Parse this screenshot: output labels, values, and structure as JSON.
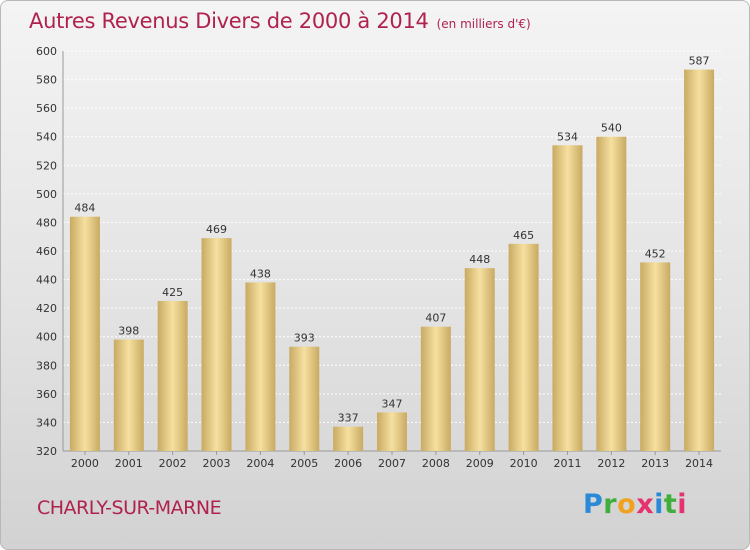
{
  "header": {
    "title": "Autres Revenus Divers de 2000 à 2014",
    "subtitle": "(en milliers d'€)"
  },
  "footer": {
    "city": "CHARLY-SUR-MARNE",
    "brand_letters": [
      "P",
      "r",
      "o",
      "x",
      "i",
      "t",
      "i"
    ]
  },
  "colors": {
    "title": "#b0224e",
    "bar_light": "#f6e0a0",
    "bar_dark": "#c8aa62"
  },
  "chart_data": {
    "type": "bar",
    "title": "Autres Revenus Divers de 2000 à 2014",
    "subtitle": "(en milliers d'€)",
    "xlabel": "",
    "ylabel": "",
    "categories": [
      "2000",
      "2001",
      "2002",
      "2003",
      "2004",
      "2005",
      "2006",
      "2007",
      "2008",
      "2009",
      "2010",
      "2011",
      "2012",
      "2013",
      "2014"
    ],
    "values": [
      484,
      398,
      425,
      469,
      438,
      393,
      337,
      347,
      407,
      448,
      465,
      534,
      540,
      452,
      587
    ],
    "ylim": [
      320,
      600
    ],
    "yticks": [
      320,
      340,
      360,
      380,
      400,
      420,
      440,
      460,
      480,
      500,
      520,
      540,
      560,
      580,
      600
    ],
    "grid": true,
    "legend": "none"
  }
}
